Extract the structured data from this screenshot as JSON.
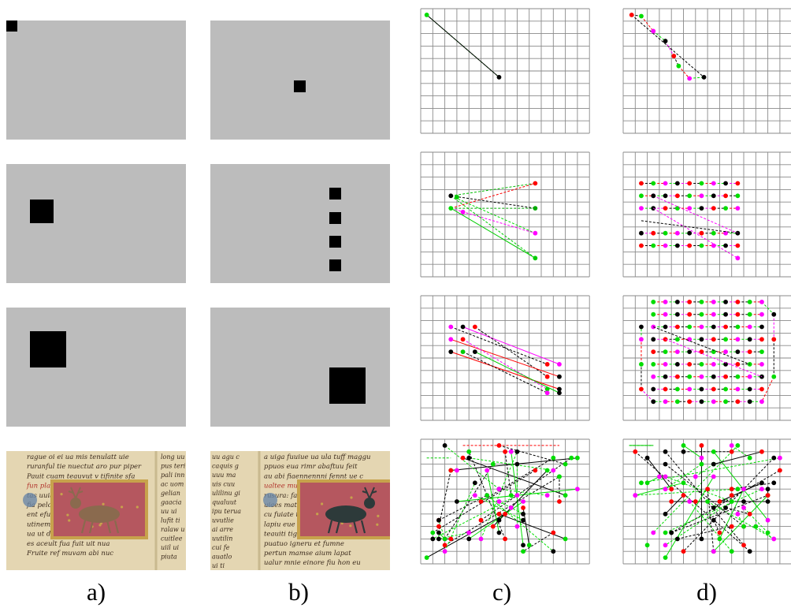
{
  "captions": [
    "a)",
    "b)",
    "c)",
    "d)"
  ],
  "colors": {
    "panel_gray": "#bcbcbc",
    "square": "#000000",
    "parchment": "#e4d6b2",
    "ink": "#3b2a1c",
    "red_ink": "#b0302a",
    "frame_red": "#b5575f",
    "frame_gold": "#c7a24c",
    "dot_palette": [
      "#000000",
      "#ff0000",
      "#00dd00",
      "#ff00ff"
    ]
  },
  "grid": {
    "columns": 14,
    "rows": 10
  },
  "manuscript": {
    "text_lines_a": [
      "rague oi ei ua mis tenulatt uie",
      "ruranful tie nuectut aro pur piper",
      "Pauit cuam teauvut v tifinite sfa",
      "fun pladis beuue De quicorium",
      "tas uuia qua fruae trar sig",
      "fia pelcuina brouia ma fa fana",
      "ent efunus ne ad bec tuam",
      "utinem ei ceuce marit ma uf",
      "ua ut d iea fcmt tuumm rifco",
      "es aceult fua fuit uit nua",
      "Fruite ref muvam abi nuc"
    ],
    "text_lines_b": [
      "a uiga fuuiue ua ula tuff maggu",
      "ppuos eua rimr abaftuu feit",
      "au abi fiaennennni fennt ue c",
      "ualtee muntun puil ea fuur",
      "rusura: fan peue uitat",
      "uiaes matt tuae fea",
      "cu fuiate tugu fua",
      "lapiu eue tuite ma ani",
      "teauiti tigaue aotio fuamne",
      "puatuo igneru et fumne",
      "pertun mamse aium lapat",
      "ualur mnie einore fiu hon eu"
    ],
    "side_lines_a": [
      "long uu",
      "pus teri",
      "pali inn",
      "ac uom",
      "gelian",
      "gaacia",
      "uu ui",
      "lufit ti",
      "ralaw u",
      "cuitlee",
      "uiil ui",
      "piuta"
    ],
    "side_lines_b": [
      "uu agu c",
      "caquis g",
      "uuu ma",
      "uis cuu",
      "ulilinu gi",
      "qualuut",
      "ipu terua",
      "uvutlie",
      "ai arre",
      "uutilin",
      "cui fe",
      "auatlo",
      "ui ti"
    ]
  }
}
